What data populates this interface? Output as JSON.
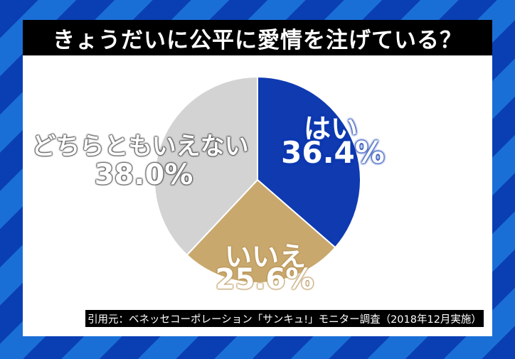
{
  "title": "きょうだいに公平に愛情を注げている？",
  "source": "引用元：ベネッセコーポレーション「サンキュ!」モニター調査（2018年12月実施）",
  "chart_data": {
    "type": "pie",
    "title": "きょうだいに公平に愛情を注げている？",
    "start": "top, clockwise",
    "slices": [
      {
        "label": "はい",
        "value": 36.4,
        "value_label": "36.4%",
        "color": "#0f3ab0"
      },
      {
        "label": "いいえ",
        "value": 25.6,
        "value_label": "25.6%",
        "color": "#c9a86e"
      },
      {
        "label": "どちらともいえない",
        "value": 38.0,
        "value_label": "38.0%",
        "color": "#d3d3d3"
      }
    ]
  }
}
